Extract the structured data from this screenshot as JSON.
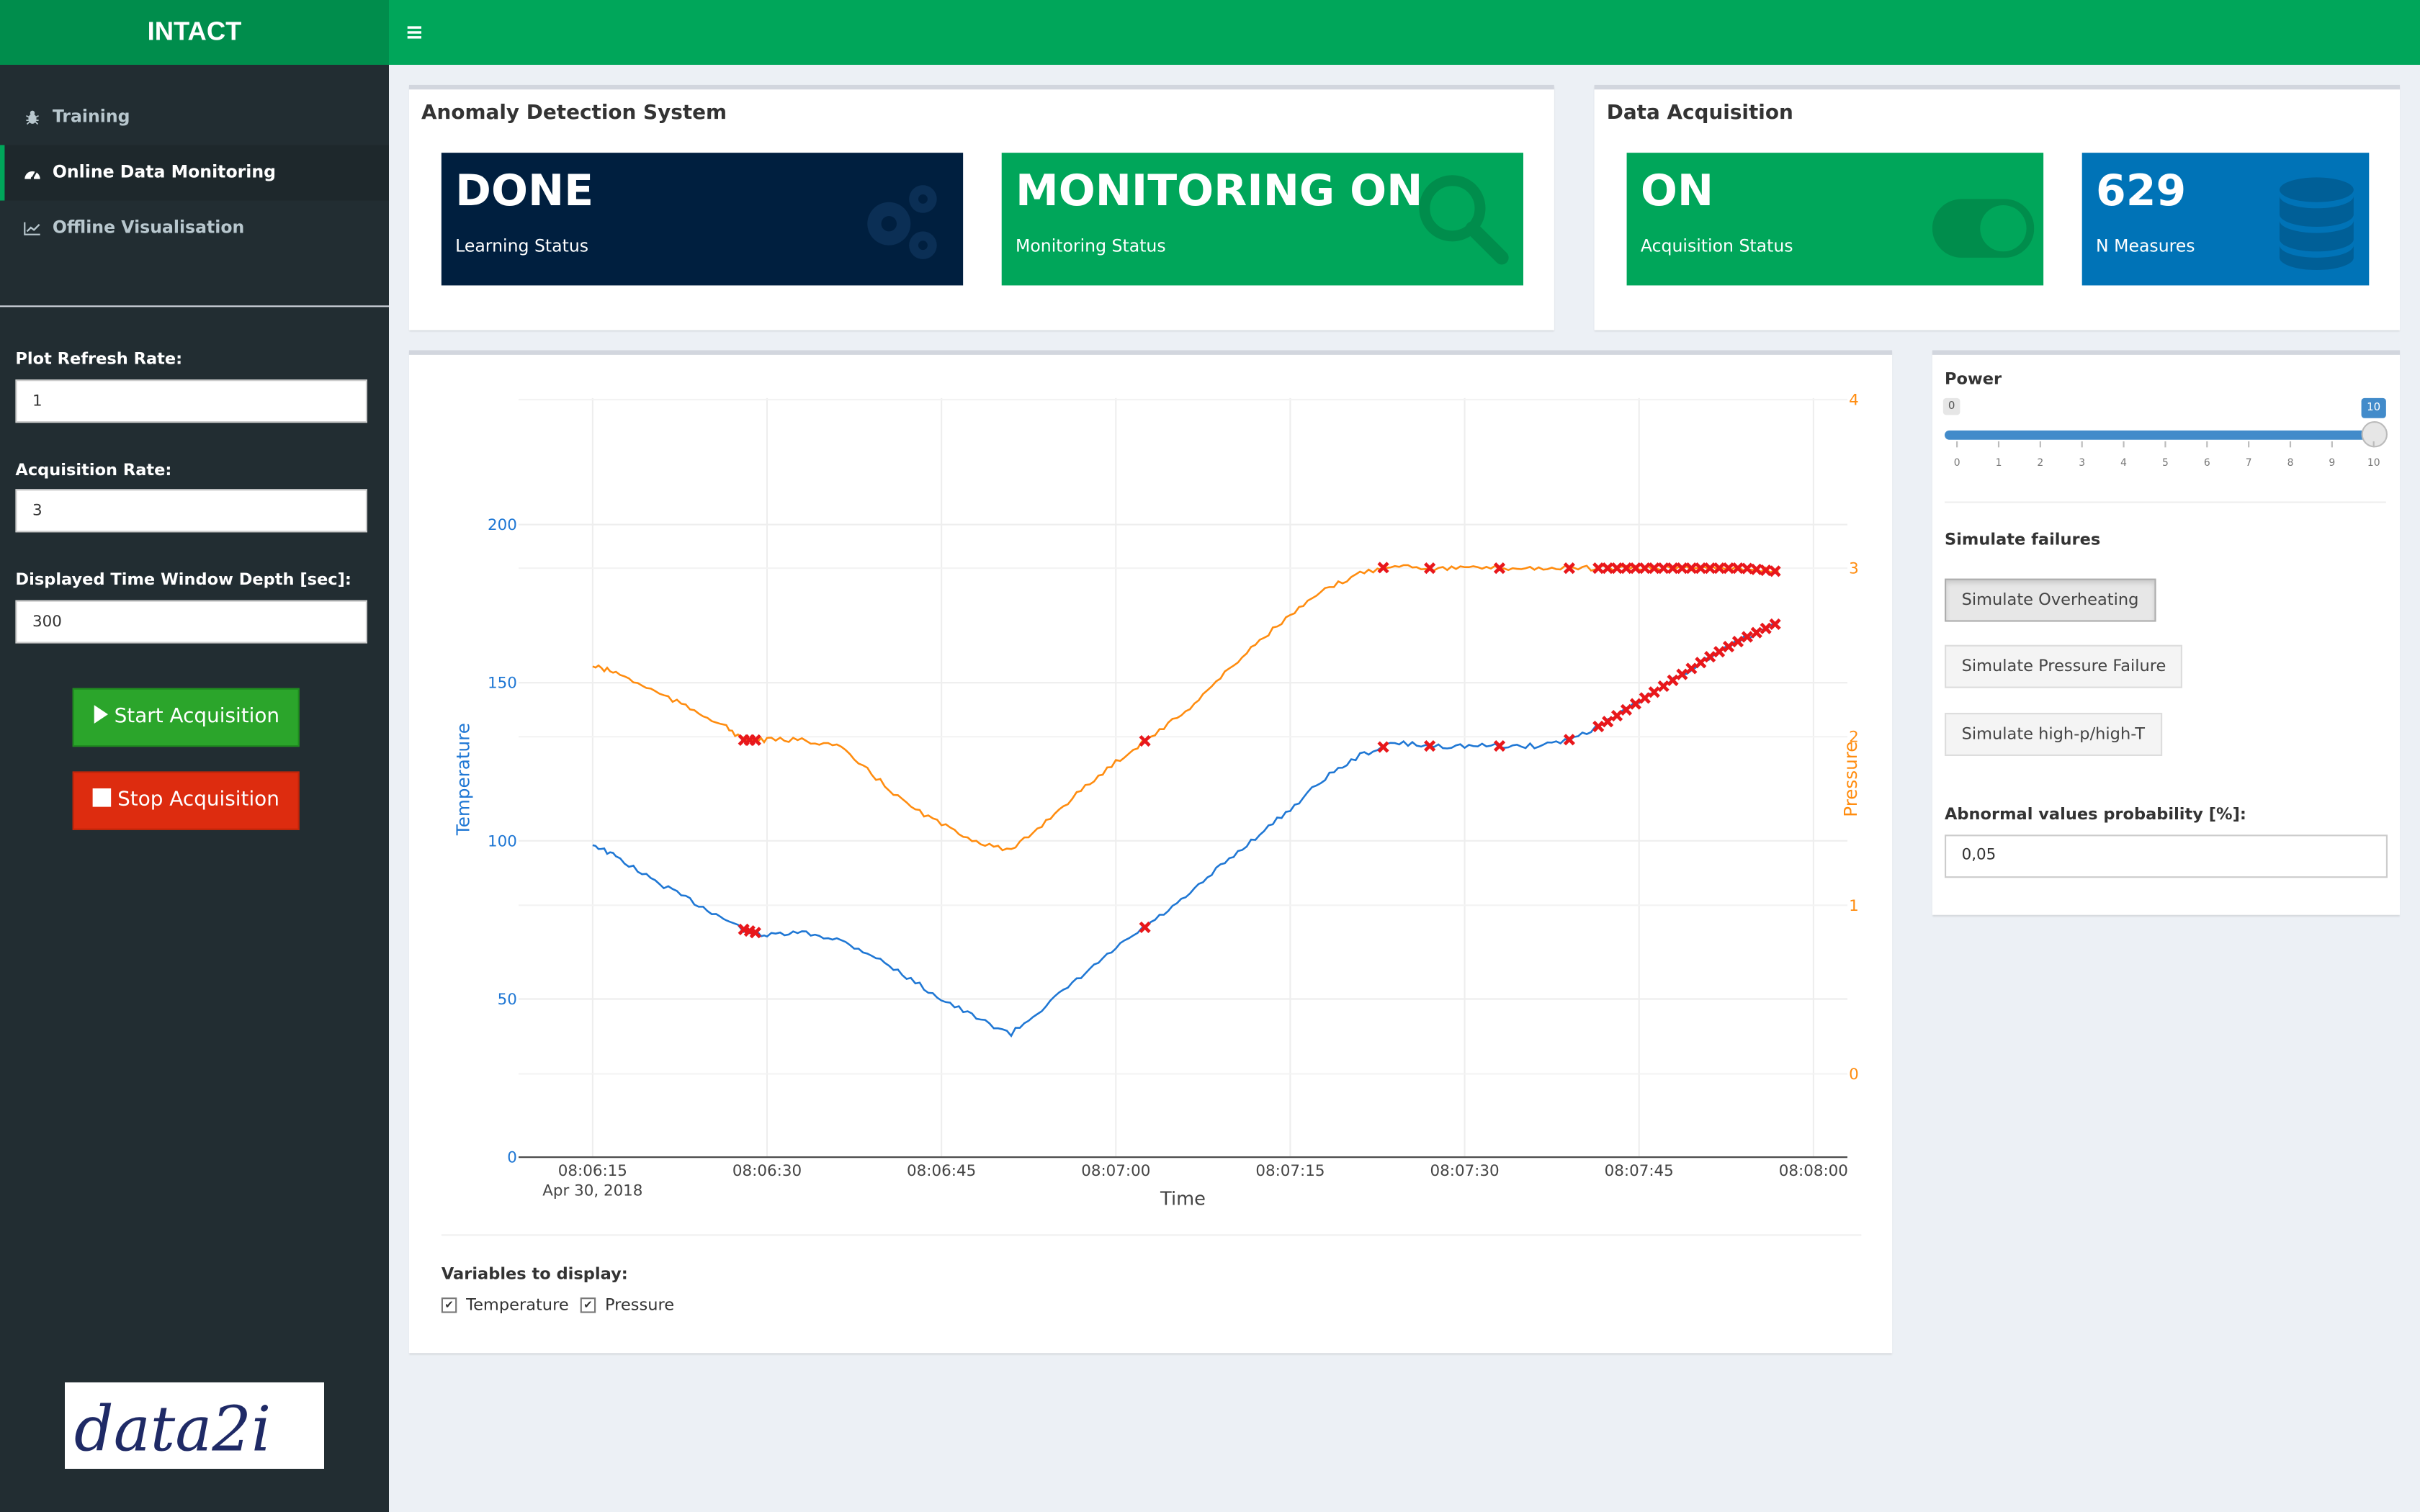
{
  "app": {
    "title": "INTACT"
  },
  "header": {
    "menu_icon": "hamburger-icon"
  },
  "sidebar": {
    "items": [
      {
        "label": "Training",
        "icon": "bug-icon"
      },
      {
        "label": "Online Data Monitoring",
        "icon": "dashboard-icon",
        "active": true
      },
      {
        "label": "Offline Visualisation",
        "icon": "line-chart-icon"
      }
    ],
    "plot_refresh": {
      "label": "Plot Refresh Rate:",
      "value": "1"
    },
    "acq_rate": {
      "label": "Acquisition Rate:",
      "value": "3"
    },
    "time_window": {
      "label": "Displayed Time Window Depth [sec]:",
      "value": "300"
    },
    "start_label": "Start Acquisition",
    "stop_label": "Stop Acquisition",
    "logo_text": "data2i"
  },
  "anomaly": {
    "title": "Anomaly Detection System",
    "learning": {
      "value": "DONE",
      "label": "Learning Status",
      "color": "#001f3f"
    },
    "monitoring": {
      "value": "MONITORING ON",
      "label": "Monitoring Status",
      "color": "#00a65a"
    }
  },
  "acquisition": {
    "title": "Data Acquisition",
    "status": {
      "value": "ON",
      "label": "Acquisition Status",
      "color": "#00a65a"
    },
    "measures": {
      "value": "629",
      "label": "N Measures",
      "color": "#0073b7"
    }
  },
  "chart_data": {
    "type": "line",
    "xlabel": "Time",
    "y1label": "Temperature",
    "y2label": "Pressure",
    "x_ticks": [
      "08:06:15",
      "08:06:30",
      "08:06:45",
      "08:07:00",
      "08:07:15",
      "08:07:30",
      "08:07:45",
      "08:08:00"
    ],
    "x_date_label": "Apr 30, 2018",
    "y1_ticks": [
      "0",
      "50",
      "100",
      "150",
      "200"
    ],
    "y2_ticks": [
      "0",
      "1",
      "2",
      "3",
      "4"
    ],
    "y1lim": [
      0,
      240
    ],
    "y2lim": [
      0,
      4
    ],
    "xlim_seconds_of_window": [
      0,
      105
    ],
    "series": [
      {
        "name": "Temperature",
        "color": "#1f77d4",
        "axis": "left",
        "points": [
          [
            0,
            99
          ],
          [
            2,
            95
          ],
          [
            5,
            88
          ],
          [
            8,
            82
          ],
          [
            11,
            76
          ],
          [
            13,
            72
          ],
          [
            15,
            70
          ],
          [
            18,
            71
          ],
          [
            21,
            69
          ],
          [
            24,
            64
          ],
          [
            27,
            57
          ],
          [
            30,
            50
          ],
          [
            33,
            44
          ],
          [
            36,
            39
          ],
          [
            39,
            48
          ],
          [
            42,
            57
          ],
          [
            45,
            66
          ],
          [
            48,
            74
          ],
          [
            51,
            82
          ],
          [
            54,
            92
          ],
          [
            57,
            101
          ],
          [
            60,
            110
          ],
          [
            63,
            120
          ],
          [
            66,
            127
          ],
          [
            69,
            131
          ],
          [
            72,
            130
          ],
          [
            75,
            130
          ],
          [
            78,
            130
          ],
          [
            81,
            130
          ],
          [
            84,
            132
          ],
          [
            87,
            137
          ],
          [
            90,
            144
          ],
          [
            93,
            151
          ],
          [
            96,
            158
          ],
          [
            99,
            164
          ],
          [
            102,
            169
          ]
        ]
      },
      {
        "name": "Pressure",
        "color": "#ff8c0f",
        "axis": "right",
        "points": [
          [
            0,
            2.42
          ],
          [
            2,
            2.38
          ],
          [
            5,
            2.28
          ],
          [
            8,
            2.18
          ],
          [
            11,
            2.08
          ],
          [
            13,
            1.98
          ],
          [
            15,
            1.98
          ],
          [
            18,
            1.98
          ],
          [
            21,
            1.95
          ],
          [
            24,
            1.78
          ],
          [
            27,
            1.6
          ],
          [
            30,
            1.48
          ],
          [
            33,
            1.38
          ],
          [
            36,
            1.32
          ],
          [
            39,
            1.5
          ],
          [
            42,
            1.68
          ],
          [
            45,
            1.85
          ],
          [
            48,
            2.0
          ],
          [
            51,
            2.15
          ],
          [
            54,
            2.35
          ],
          [
            57,
            2.55
          ],
          [
            60,
            2.72
          ],
          [
            63,
            2.87
          ],
          [
            66,
            2.97
          ],
          [
            69,
            3.02
          ],
          [
            72,
            3.0
          ],
          [
            75,
            3.0
          ],
          [
            78,
            3.0
          ],
          [
            81,
            3.0
          ],
          [
            84,
            3.0
          ],
          [
            87,
            3.0
          ],
          [
            90,
            3.0
          ],
          [
            93,
            3.0
          ],
          [
            96,
            3.0
          ],
          [
            99,
            3.0
          ],
          [
            102,
            2.98
          ]
        ]
      }
    ],
    "anomaly_color": "#e8171b"
  },
  "display_vars": {
    "title": "Variables to display:",
    "options": [
      {
        "label": "Temperature",
        "checked": true
      },
      {
        "label": "Pressure",
        "checked": true
      }
    ]
  },
  "controls": {
    "power": {
      "label": "Power",
      "min": "0",
      "max": "10",
      "value": "10",
      "ticks": [
        "0",
        "1",
        "2",
        "3",
        "4",
        "5",
        "6",
        "7",
        "8",
        "9",
        "10"
      ]
    },
    "failures_title": "Simulate failures",
    "buttons": [
      "Simulate Overheating",
      "Simulate Pressure Failure",
      "Simulate high-p/high-T"
    ],
    "probability": {
      "label": "Abnormal values probability [%]:",
      "value": "0,05"
    }
  }
}
